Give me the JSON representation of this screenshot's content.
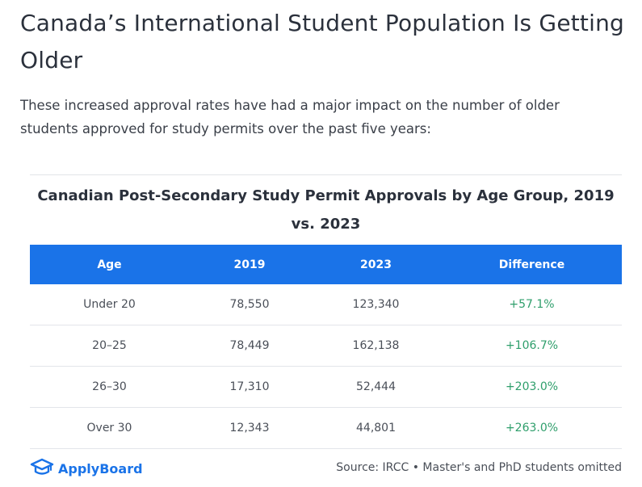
{
  "article": {
    "headline": "Canada’s International Student Population Is Getting Older",
    "intro": "These increased approval rates have had a major impact on the number of older students approved for study permits over the past five years:"
  },
  "figure": {
    "title": "Canadian Post-Secondary Study Permit Approvals by Age Group, 2019 vs. 2023",
    "columns": [
      "Age",
      "2019",
      "2023",
      "Difference"
    ],
    "rows": [
      {
        "age": "Under 20",
        "y2019": "78,550",
        "y2023": "123,340",
        "diff": "+57.1%"
      },
      {
        "age": "20–25",
        "y2019": "78,449",
        "y2023": "162,138",
        "diff": "+106.7%"
      },
      {
        "age": "26–30",
        "y2019": "17,310",
        "y2023": "52,444",
        "diff": "+203.0%"
      },
      {
        "age": "Over 30",
        "y2019": "12,343",
        "y2023": "44,801",
        "diff": "+263.0%"
      }
    ],
    "logo_text": "ApplyBoard",
    "logo_icon": "graduation-cap-icon",
    "source": "Source: IRCC • Master's and PhD students omitted"
  },
  "colors": {
    "header_bg": "#1a73e8",
    "positive": "#2e9e6b",
    "brand": "#1a73e8"
  }
}
